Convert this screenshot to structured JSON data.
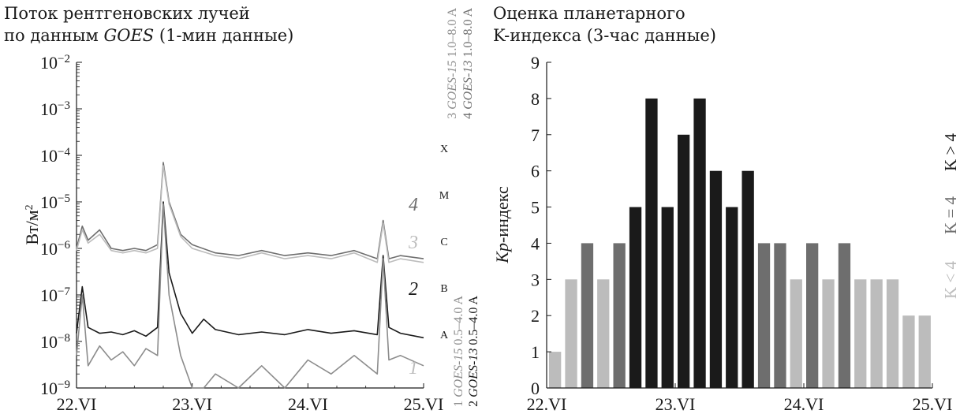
{
  "colors": {
    "axis": "#1a1a1a",
    "dark": "#1a1a1a",
    "mid": "#6e6e6e",
    "light": "#bcbcbc",
    "gray_curve": "#8c8c8c"
  },
  "chart_data": [
    {
      "type": "line",
      "title_line1": "Поток рентгеновских лучей",
      "title_line2_prefix": "по данным ",
      "title_line2_italic": "GOES",
      "title_line2_suffix": " (1-мин данные)",
      "ylabel": "Вт/м",
      "ylabel_sup": "2",
      "yscale": "log",
      "ylim": [
        1e-09,
        0.01
      ],
      "ytick_mantissa": "10",
      "ytick_exponents": [
        "−9",
        "−8",
        "−7",
        "−6",
        "−5",
        "−4",
        "−3",
        "−2"
      ],
      "xlim": [
        0,
        3
      ],
      "xtick_labels": [
        "22.VI",
        "23.VI",
        "24.VI",
        "25.VI"
      ],
      "class_labels": [
        {
          "label": "X",
          "y": 0.0001
        },
        {
          "label": "M",
          "y": 1e-05
        },
        {
          "label": "C",
          "y": 1e-06
        },
        {
          "label": "B",
          "y": 1e-07
        },
        {
          "label": "A",
          "y": 1e-08
        }
      ],
      "curve_numbers": [
        "1",
        "2",
        "3",
        "4"
      ],
      "legend": [
        {
          "num": "1",
          "sat": "GOES-15",
          "range": "0.5–4.0 A",
          "color": "light"
        },
        {
          "num": "2",
          "sat": "GOES-13",
          "range": "0.5–4.0 A",
          "color": "dark"
        },
        {
          "num": "3",
          "sat": "GOES-15",
          "range": "1.0–8.0 A",
          "color": "light"
        },
        {
          "num": "4",
          "sat": "GOES-13",
          "range": "1.0–8.0 A",
          "color": "mid"
        }
      ],
      "series": [
        {
          "name": "4",
          "x": [
            0,
            0.05,
            0.1,
            0.2,
            0.3,
            0.4,
            0.5,
            0.6,
            0.7,
            0.75,
            0.8,
            0.9,
            1.0,
            1.2,
            1.4,
            1.6,
            1.8,
            2.0,
            2.2,
            2.4,
            2.6,
            2.65,
            2.7,
            2.8,
            3.0
          ],
          "y": [
            1e-06,
            3e-06,
            1.5e-06,
            2.5e-06,
            1e-06,
            9e-07,
            1e-06,
            9e-07,
            1.2e-06,
            7e-05,
            1e-05,
            2e-06,
            1.2e-06,
            8e-07,
            7e-07,
            9e-07,
            7e-07,
            8e-07,
            7e-07,
            9e-07,
            6e-07,
            4e-06,
            6e-07,
            7e-07,
            6e-07
          ]
        },
        {
          "name": "3",
          "x": [
            0,
            0.05,
            0.1,
            0.2,
            0.3,
            0.4,
            0.5,
            0.6,
            0.7,
            0.75,
            0.8,
            0.9,
            1.0,
            1.2,
            1.4,
            1.6,
            1.8,
            2.0,
            2.2,
            2.4,
            2.6,
            2.65,
            2.7,
            2.8,
            3.0
          ],
          "y": [
            9e-07,
            2.5e-06,
            1.3e-06,
            2e-06,
            9e-07,
            8e-07,
            9e-07,
            8e-07,
            1e-06,
            6e-05,
            9e-06,
            1.8e-06,
            1e-06,
            7e-07,
            6e-07,
            8e-07,
            6e-07,
            7e-07,
            6e-07,
            8e-07,
            5e-07,
            3.5e-06,
            5e-07,
            6e-07,
            5e-07
          ]
        },
        {
          "name": "2",
          "x": [
            0,
            0.05,
            0.1,
            0.2,
            0.3,
            0.4,
            0.5,
            0.6,
            0.7,
            0.75,
            0.8,
            0.9,
            1.0,
            1.1,
            1.2,
            1.4,
            1.6,
            1.8,
            2.0,
            2.2,
            2.4,
            2.6,
            2.65,
            2.7,
            2.8,
            3.0
          ],
          "y": [
            1.5e-08,
            1.5e-07,
            2e-08,
            1.5e-08,
            1.6e-08,
            1.4e-08,
            1.7e-08,
            1.3e-08,
            2e-08,
            1e-05,
            3e-07,
            4e-08,
            1.5e-08,
            3e-08,
            1.8e-08,
            1.4e-08,
            1.6e-08,
            1.4e-08,
            1.8e-08,
            1.5e-08,
            1.7e-08,
            1.4e-08,
            7e-07,
            2e-08,
            1.5e-08,
            1.2e-08
          ]
        },
        {
          "name": "1",
          "x": [
            0,
            0.05,
            0.1,
            0.2,
            0.3,
            0.4,
            0.5,
            0.6,
            0.7,
            0.75,
            0.8,
            0.9,
            1.0,
            1.1,
            1.2,
            1.4,
            1.6,
            1.8,
            2.0,
            2.2,
            2.4,
            2.6,
            2.65,
            2.7,
            2.8,
            3.0
          ],
          "y": [
            5e-09,
            1e-07,
            3e-09,
            8e-09,
            4e-09,
            6e-09,
            3e-09,
            7e-09,
            5e-09,
            9e-06,
            1e-07,
            5e-09,
            1e-09,
            1e-09,
            2e-09,
            1e-09,
            3e-09,
            1e-09,
            4e-09,
            2e-09,
            5e-09,
            2e-09,
            6e-07,
            4e-09,
            5e-09,
            3e-09
          ]
        }
      ]
    },
    {
      "type": "bar",
      "title_line1": "Оценка планетарного",
      "title_line2": "K-индекса (3-час данные)",
      "ylabel_italic": "Kp",
      "ylabel_rest": "-индекс",
      "ylim": [
        0,
        9
      ],
      "yticks": [
        "0",
        "1",
        "2",
        "3",
        "4",
        "5",
        "6",
        "7",
        "8",
        "9"
      ],
      "xlim": [
        0,
        3
      ],
      "xtick_labels": [
        "22.VI",
        "23.VI",
        "24.VI",
        "25.VI"
      ],
      "values": [
        1,
        3,
        4,
        3,
        4,
        5,
        8,
        5,
        7,
        8,
        6,
        5,
        6,
        4,
        4,
        3,
        4,
        3,
        4,
        3,
        3,
        3,
        2,
        2
      ],
      "legend": [
        {
          "label": "K < 4",
          "color": "light"
        },
        {
          "label": "K = 4",
          "color": "mid"
        },
        {
          "label": "K > 4",
          "color": "dark"
        }
      ]
    }
  ]
}
